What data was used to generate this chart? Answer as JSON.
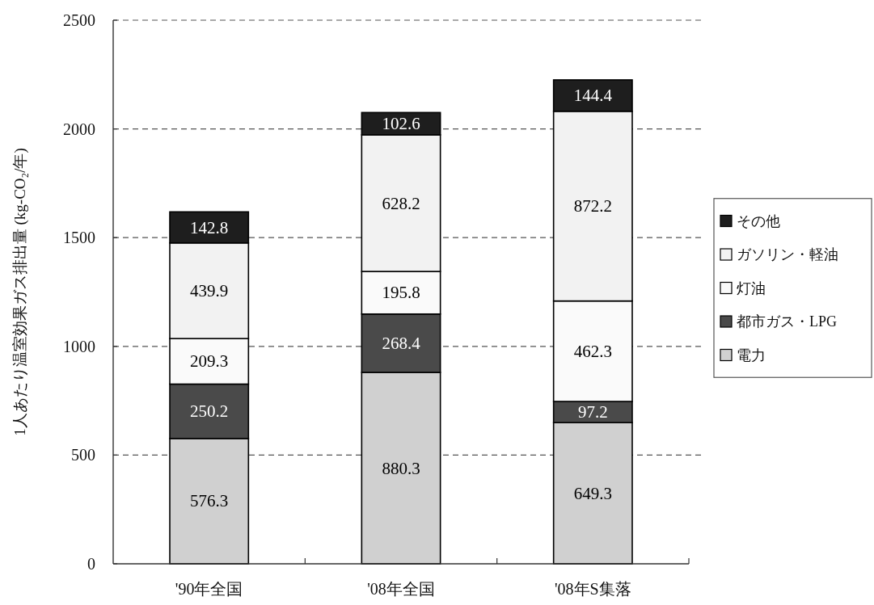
{
  "chart_data": {
    "type": "bar",
    "stacked": true,
    "ylabel": "1人あたり温室効果ガス排出量 (kg-CO₂/年)",
    "categories": [
      "'90年全国",
      "'08年全国",
      "'08年S集落"
    ],
    "series": [
      {
        "name": "電力",
        "color": "#d0d0d0",
        "values": [
          576.3,
          880.3,
          649.3
        ]
      },
      {
        "name": "都市ガス・LPG",
        "color": "#4a4a4a",
        "values": [
          250.2,
          268.4,
          97.2
        ]
      },
      {
        "name": "灯油",
        "color": "#fafafa",
        "values": [
          209.3,
          195.8,
          462.3
        ]
      },
      {
        "name": "ガソリン・軽油",
        "color": "#f2f2f2",
        "values": [
          439.9,
          628.2,
          872.2
        ]
      },
      {
        "name": "その他",
        "color": "#1e1e1e",
        "values": [
          142.8,
          102.6,
          144.4
        ]
      }
    ],
    "ylim": [
      0,
      2500
    ],
    "yticks": [
      0,
      500,
      1000,
      1500,
      2000,
      2500
    ],
    "grid": "y",
    "legend": "right",
    "data_labels": true
  }
}
